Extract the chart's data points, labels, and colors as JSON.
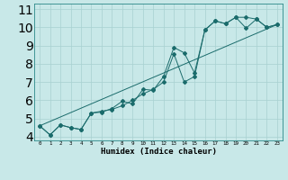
{
  "xlabel": "Humidex (Indice chaleur)",
  "bg_color": "#c8e8e8",
  "grid_color": "#a8d0d0",
  "line_color": "#1a6b6b",
  "xlim": [
    -0.5,
    23.5
  ],
  "ylim": [
    3.8,
    11.3
  ],
  "xticks": [
    0,
    1,
    2,
    3,
    4,
    5,
    6,
    7,
    8,
    9,
    10,
    11,
    12,
    13,
    14,
    15,
    16,
    17,
    18,
    19,
    20,
    21,
    22,
    23
  ],
  "yticks": [
    4,
    5,
    6,
    7,
    8,
    9,
    10,
    11
  ],
  "line1_x": [
    0,
    1,
    2,
    3,
    4,
    5,
    6,
    7,
    8,
    9,
    10,
    11,
    12,
    13,
    14,
    15,
    16,
    17,
    18,
    19,
    20,
    21,
    22,
    23
  ],
  "line1_y": [
    4.6,
    4.1,
    4.65,
    4.5,
    4.4,
    5.3,
    5.4,
    5.5,
    5.7,
    6.0,
    6.35,
    6.6,
    7.0,
    8.55,
    7.0,
    7.3,
    9.85,
    10.35,
    10.2,
    10.55,
    10.55,
    10.45,
    10.0,
    10.15
  ],
  "line2_x": [
    0,
    1,
    2,
    3,
    4,
    5,
    6,
    7,
    8,
    9,
    10,
    11,
    12,
    13,
    14,
    15,
    16,
    17,
    18,
    19,
    20,
    21,
    22,
    23
  ],
  "line2_y": [
    4.6,
    4.1,
    4.65,
    4.5,
    4.4,
    5.3,
    5.35,
    5.55,
    5.95,
    5.8,
    6.6,
    6.55,
    7.3,
    8.9,
    8.6,
    7.5,
    9.85,
    10.35,
    10.2,
    10.55,
    9.95,
    10.45,
    10.0,
    10.15
  ],
  "line3_x": [
    0,
    23
  ],
  "line3_y": [
    4.6,
    10.15
  ],
  "xlabel_fontsize": 6.5,
  "tick_fontsize_x": 4.2,
  "tick_fontsize_y": 5.5
}
